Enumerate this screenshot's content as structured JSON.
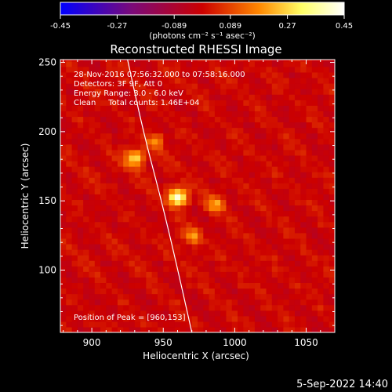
{
  "chart_data": {
    "type": "heatmap",
    "title": "Reconstructed RHESSI Image",
    "colorbar": {
      "ticks": [
        "-0.45",
        "-0.27",
        "-0.089",
        "0.089",
        "0.27",
        "0.45"
      ],
      "range": [
        -0.45,
        0.45
      ],
      "units_label": "(photons cm⁻² s⁻¹ asec⁻²)",
      "colormap": [
        "#0000ff",
        "#7a0a7a",
        "#cc0000",
        "#ff8800",
        "#ffff66",
        "#ffffff"
      ]
    },
    "xlabel": "Heliocentric X (arcsec)",
    "ylabel": "Heliocentric Y (arcsec)",
    "xlim": [
      878,
      1070
    ],
    "ylim": [
      55,
      252
    ],
    "x_ticks": [
      900,
      950,
      1000,
      1050
    ],
    "y_ticks": [
      100,
      150,
      200,
      250
    ],
    "annotations": [
      "28-Nov-2016 07:56:32.000 to 07:58:16.000",
      "Detectors: 3F 9F, Att 0",
      "Energy Range: 3.0 - 6.0 keV",
      "Clean     Total counts: 1.46E+04"
    ],
    "peak_label": "Position of Peak = [960,153]",
    "peak": {
      "x": 960,
      "y": 153,
      "value": 0.45
    },
    "secondary_sources": [
      {
        "x": 930,
        "y": 181,
        "value": 0.3
      },
      {
        "x": 987,
        "y": 148,
        "value": 0.2
      },
      {
        "x": 970,
        "y": 125,
        "value": 0.18
      },
      {
        "x": 944,
        "y": 193,
        "value": 0.17
      }
    ],
    "limb_curve": [
      [
        925,
        252
      ],
      [
        936,
        200
      ],
      [
        948,
        153
      ],
      [
        958,
        110
      ],
      [
        970,
        55
      ]
    ]
  },
  "footer": {
    "timestamp": "5-Sep-2022 14:40"
  }
}
